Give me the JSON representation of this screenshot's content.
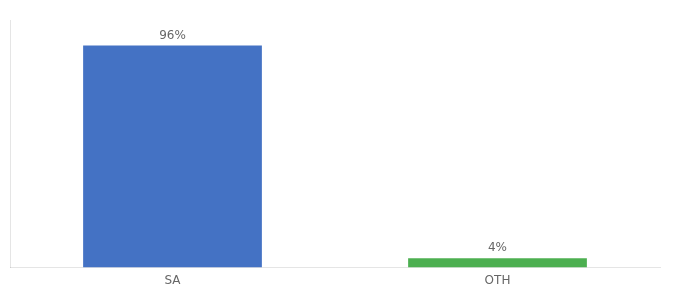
{
  "chart_data": {
    "type": "bar",
    "categories": [
      "SA",
      "OTH"
    ],
    "values": [
      96,
      4
    ],
    "value_labels": [
      "96%",
      "4%"
    ],
    "colors": [
      "#4472c4",
      "#4caf50"
    ],
    "ylim": [
      0,
      107
    ],
    "yticks": [],
    "grid": false,
    "data_labels": true,
    "tick_labels": "x"
  }
}
